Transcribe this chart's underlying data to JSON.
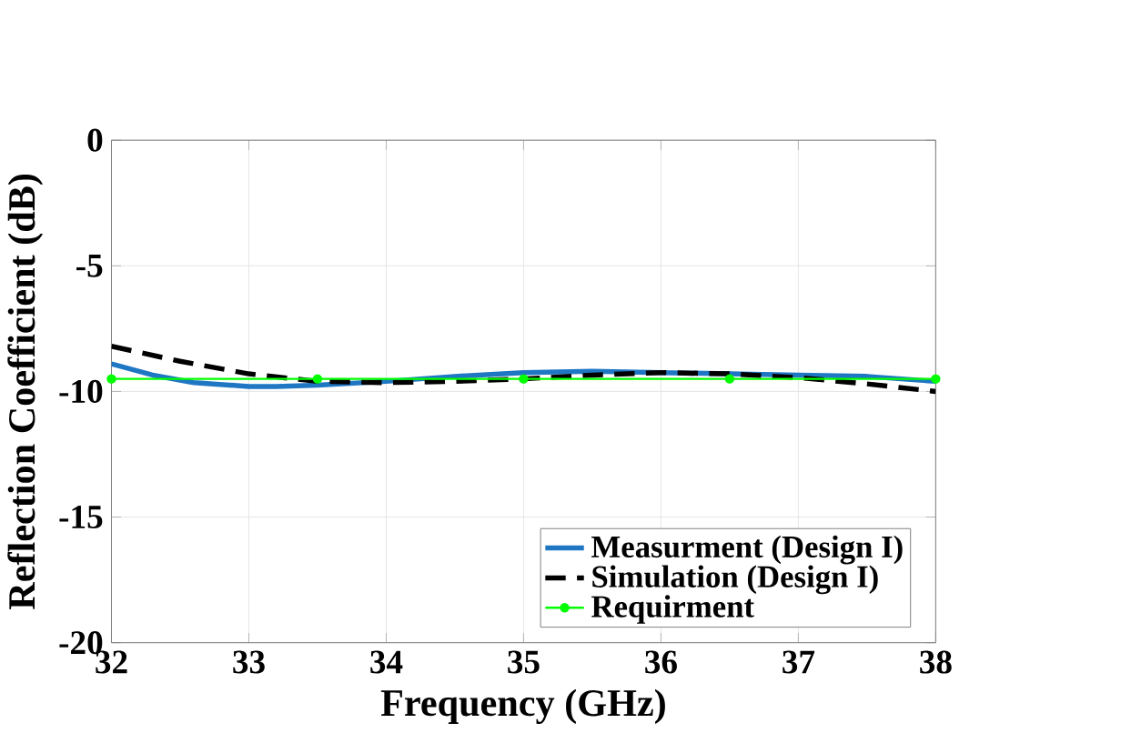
{
  "chart_data": {
    "type": "line",
    "xlabel": "Frequency (GHz)",
    "ylabel": "Reflection Coefficient  (dB)",
    "xlim": [
      32,
      38
    ],
    "ylim": [
      -20,
      0
    ],
    "xticks": [
      32,
      33,
      34,
      35,
      36,
      37,
      38
    ],
    "yticks": [
      -20,
      -15,
      -10,
      -5,
      0
    ],
    "grid": true,
    "legend": "bottom right",
    "series": [
      {
        "name": "Measurment (Design I)",
        "color": "#1f77c4",
        "line_style": "solid",
        "marker": "none",
        "x": [
          32,
          32.3,
          32.6,
          33,
          33.2,
          33.5,
          34,
          34.5,
          35,
          35.5,
          36,
          36.5,
          37,
          37.5,
          38
        ],
        "values": [
          -8.9,
          -9.35,
          -9.65,
          -9.8,
          -9.8,
          -9.75,
          -9.6,
          -9.4,
          -9.25,
          -9.2,
          -9.25,
          -9.3,
          -9.35,
          -9.4,
          -9.6
        ]
      },
      {
        "name": "Simulation (Design I)",
        "color": "#000000",
        "line_style": "dashed",
        "marker": "none",
        "x": [
          32,
          32.5,
          33,
          33.5,
          34,
          34.5,
          35,
          35.5,
          36,
          36.5,
          37,
          37.5,
          38
        ],
        "values": [
          -8.2,
          -8.8,
          -9.3,
          -9.6,
          -9.65,
          -9.6,
          -9.5,
          -9.35,
          -9.25,
          -9.3,
          -9.45,
          -9.7,
          -10
        ]
      },
      {
        "name": "Requirment",
        "color": "#00ff00",
        "line_style": "solid",
        "marker": "circle",
        "x": [
          32,
          33.5,
          35,
          36.5,
          38
        ],
        "values": [
          -9.5,
          -9.5,
          -9.5,
          -9.5,
          -9.5
        ]
      }
    ]
  }
}
